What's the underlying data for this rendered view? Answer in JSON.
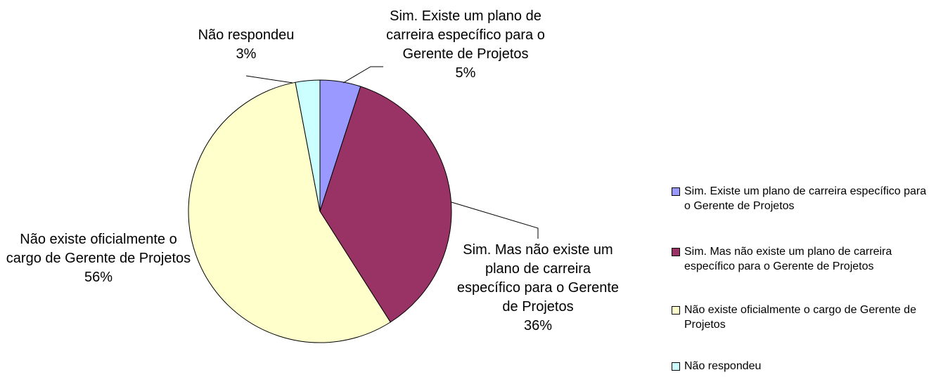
{
  "chart_data": {
    "type": "pie",
    "categories": [
      "Sim. Existe um plano de carreira específico para o Gerente de Projetos",
      "Sim. Mas não existe um plano de carreira específico para o Gerente de Projetos",
      "Não existe oficialmente o cargo de Gerente de Projetos",
      "Não respondeu"
    ],
    "values": [
      5,
      36,
      56,
      3
    ],
    "value_labels": [
      "5%",
      "36%",
      "56%",
      "3%"
    ],
    "colors": [
      "#9999ff",
      "#993366",
      "#ffffcc",
      "#ccffff"
    ],
    "legend": "right"
  }
}
